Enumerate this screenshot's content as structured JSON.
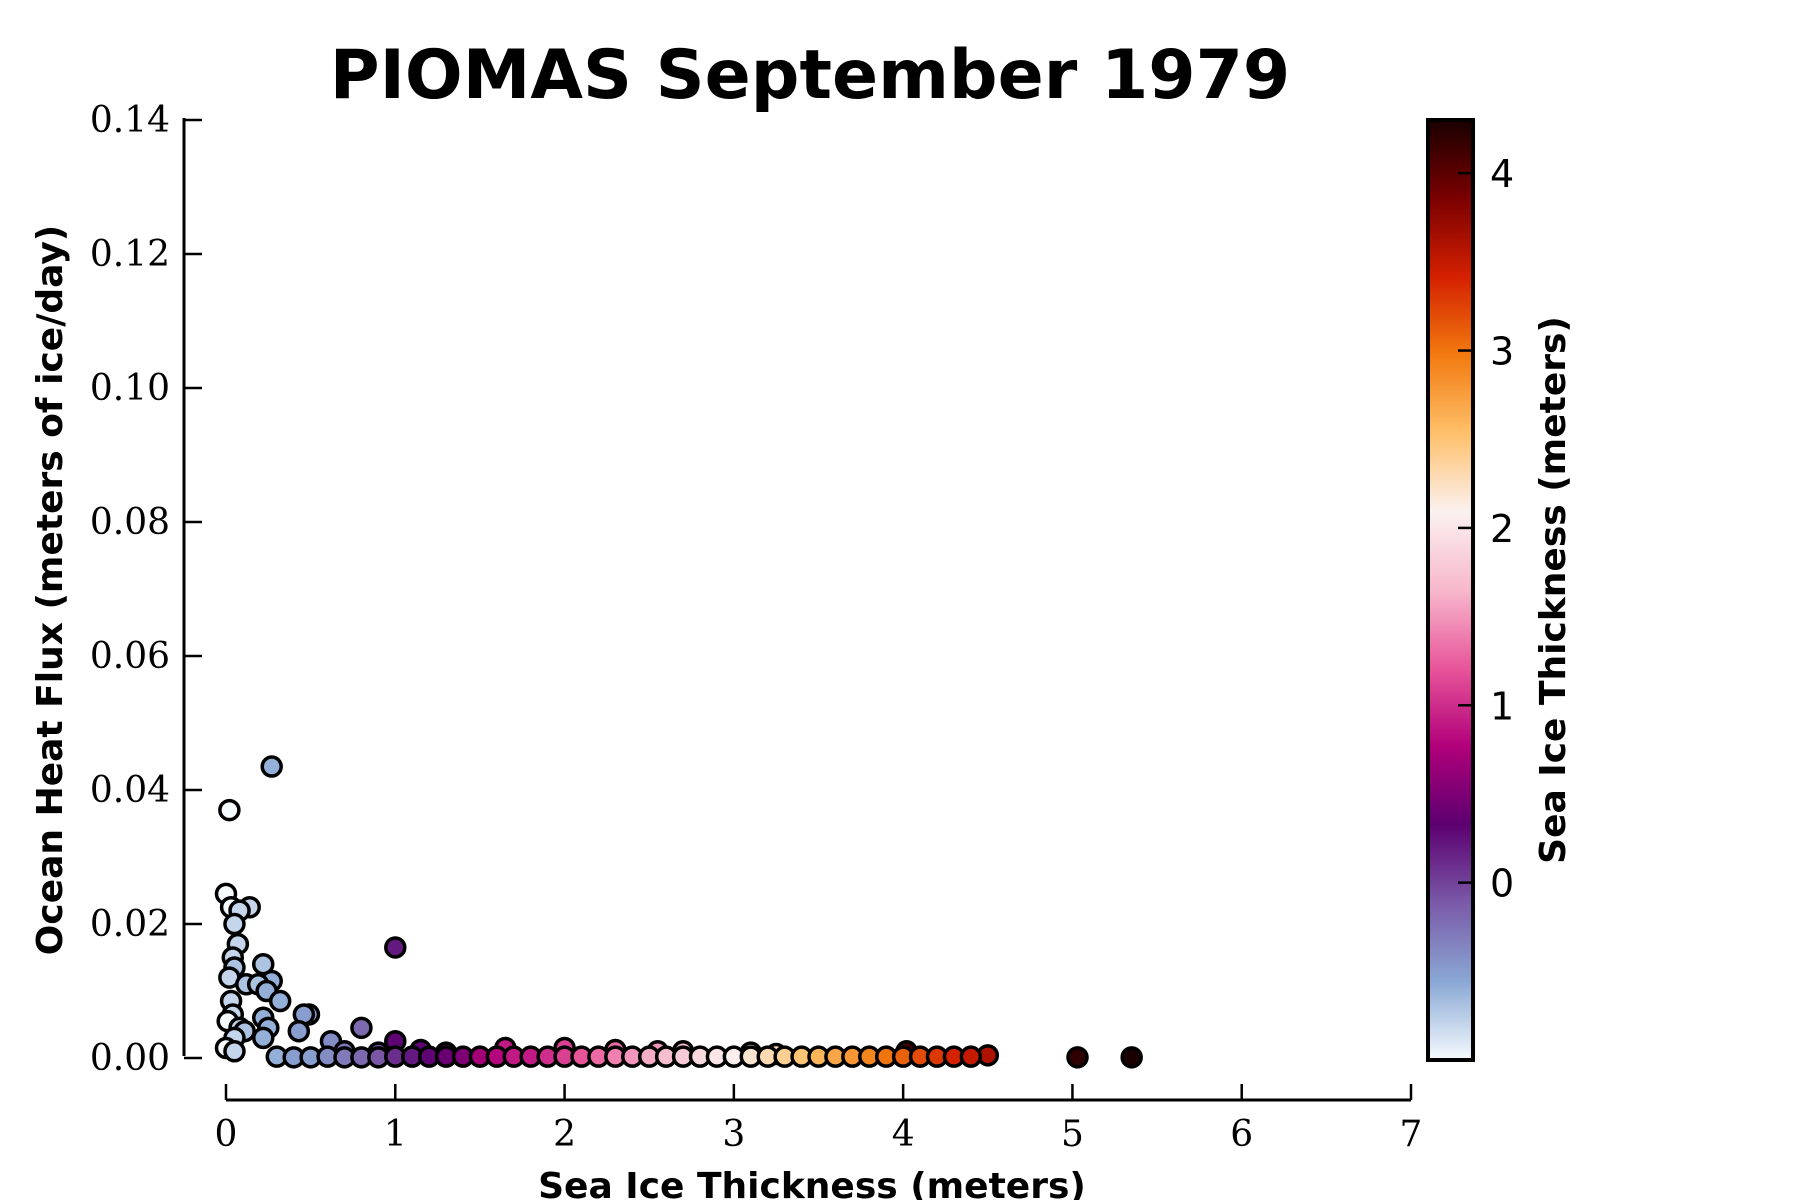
{
  "chart_data": {
    "type": "scatter",
    "title": "PIOMAS September 1979",
    "xlabel": "Sea Ice Thickness (meters)",
    "ylabel": "Ocean Heat Flux (meters of ice/day)",
    "xlim": [
      0,
      7
    ],
    "ylim": [
      0.0,
      0.14
    ],
    "x_ticks": [
      "0",
      "1",
      "2",
      "3",
      "4",
      "5",
      "6",
      "7"
    ],
    "y_ticks": [
      "0.00",
      "0.02",
      "0.04",
      "0.06",
      "0.08",
      "0.10",
      "0.12",
      "0.14"
    ],
    "grid": false,
    "colorbar": {
      "label": "Sea Ice Thickness (meters)",
      "range": [
        -1.0,
        4.3
      ],
      "ticks": [
        "0",
        "1",
        "2",
        "3",
        "4"
      ],
      "colormap_stops": [
        "#f5fbff",
        "#8aa8d4",
        "#7a5aa8",
        "#5c0070",
        "#b0007a",
        "#e8559a",
        "#f7b8cc",
        "#fbf1f0",
        "#ffc06a",
        "#f27a10",
        "#d42000",
        "#7a0000",
        "#1a0000"
      ]
    },
    "points": [
      [
        0.02,
        0.037,
        -1.0
      ],
      [
        0.27,
        0.0435,
        -0.6
      ],
      [
        0.0,
        0.0245,
        -1.0
      ],
      [
        0.03,
        0.0225,
        -1.0
      ],
      [
        0.14,
        0.0225,
        -0.8
      ],
      [
        0.08,
        0.022,
        -0.8
      ],
      [
        0.05,
        0.02,
        -0.8
      ],
      [
        0.07,
        0.017,
        -0.8
      ],
      [
        0.04,
        0.015,
        -0.8
      ],
      [
        0.22,
        0.014,
        -0.7
      ],
      [
        0.05,
        0.0135,
        -0.7
      ],
      [
        0.02,
        0.012,
        -0.8
      ],
      [
        0.27,
        0.0115,
        -0.6
      ],
      [
        0.12,
        0.011,
        -0.7
      ],
      [
        0.19,
        0.011,
        -0.7
      ],
      [
        0.24,
        0.01,
        -0.6
      ],
      [
        0.32,
        0.0085,
        -0.6
      ],
      [
        0.03,
        0.0085,
        -0.8
      ],
      [
        0.49,
        0.0065,
        -0.5
      ],
      [
        0.46,
        0.0065,
        -0.5
      ],
      [
        0.04,
        0.0065,
        -0.8
      ],
      [
        0.22,
        0.006,
        -0.6
      ],
      [
        0.01,
        0.0055,
        -1.0
      ],
      [
        0.08,
        0.0045,
        -0.8
      ],
      [
        0.25,
        0.0045,
        -0.6
      ],
      [
        0.11,
        0.004,
        -0.7
      ],
      [
        0.43,
        0.004,
        -0.5
      ],
      [
        0.05,
        0.003,
        -0.8
      ],
      [
        0.22,
        0.003,
        -0.6
      ],
      [
        0.62,
        0.0025,
        -0.4
      ],
      [
        0.8,
        0.0045,
        -0.2
      ],
      [
        1.0,
        0.0165,
        0.2
      ],
      [
        1.0,
        0.0025,
        0.3
      ],
      [
        0.0,
        0.0015,
        -1.0
      ],
      [
        0.05,
        0.001,
        -0.8
      ],
      [
        0.7,
        0.001,
        -0.3
      ],
      [
        0.9,
        0.0008,
        -0.1
      ],
      [
        1.15,
        0.0012,
        0.3
      ],
      [
        1.3,
        0.0008,
        0.4
      ],
      [
        1.65,
        0.0015,
        0.9
      ],
      [
        2.0,
        0.0015,
        1.1
      ],
      [
        2.3,
        0.0012,
        1.3
      ],
      [
        2.55,
        0.001,
        1.5
      ],
      [
        2.7,
        0.001,
        1.7
      ],
      [
        3.1,
        0.0008,
        2.0
      ],
      [
        3.25,
        0.0006,
        2.3
      ],
      [
        4.02,
        0.001,
        4.1
      ],
      [
        4.5,
        0.0004,
        3.6
      ],
      [
        5.03,
        0.0001,
        4.2
      ],
      [
        5.35,
        0.0001,
        4.3
      ],
      [
        0.3,
        0.0002,
        -0.6
      ],
      [
        0.4,
        0.0001,
        -0.5
      ],
      [
        0.5,
        0.0001,
        -0.5
      ],
      [
        0.6,
        0.0002,
        -0.4
      ],
      [
        0.7,
        0.0001,
        -0.3
      ],
      [
        0.8,
        0.0001,
        -0.2
      ],
      [
        0.9,
        0.0001,
        -0.1
      ],
      [
        1.0,
        0.0002,
        0.1
      ],
      [
        1.1,
        0.0002,
        0.2
      ],
      [
        1.2,
        0.0002,
        0.3
      ],
      [
        1.3,
        0.0002,
        0.4
      ],
      [
        1.4,
        0.0002,
        0.5
      ],
      [
        1.5,
        0.0002,
        0.7
      ],
      [
        1.6,
        0.0002,
        0.8
      ],
      [
        1.7,
        0.0002,
        0.9
      ],
      [
        1.8,
        0.0002,
        0.9
      ],
      [
        1.9,
        0.0002,
        1.0
      ],
      [
        2.0,
        0.0002,
        1.1
      ],
      [
        2.1,
        0.0002,
        1.2
      ],
      [
        2.2,
        0.0002,
        1.3
      ],
      [
        2.3,
        0.0002,
        1.4
      ],
      [
        2.4,
        0.0002,
        1.5
      ],
      [
        2.5,
        0.0002,
        1.6
      ],
      [
        2.6,
        0.0002,
        1.7
      ],
      [
        2.7,
        0.0002,
        1.8
      ],
      [
        2.8,
        0.0002,
        1.9
      ],
      [
        2.9,
        0.0002,
        2.0
      ],
      [
        3.0,
        0.0002,
        2.1
      ],
      [
        3.1,
        0.0002,
        2.2
      ],
      [
        3.2,
        0.0002,
        2.3
      ],
      [
        3.3,
        0.0002,
        2.4
      ],
      [
        3.4,
        0.0002,
        2.5
      ],
      [
        3.5,
        0.0002,
        2.6
      ],
      [
        3.6,
        0.0002,
        2.7
      ],
      [
        3.7,
        0.0002,
        2.8
      ],
      [
        3.8,
        0.0002,
        2.9
      ],
      [
        3.9,
        0.0002,
        3.0
      ],
      [
        4.0,
        0.0002,
        3.1
      ],
      [
        4.1,
        0.0002,
        3.2
      ],
      [
        4.2,
        0.0002,
        3.3
      ],
      [
        4.3,
        0.0002,
        3.4
      ],
      [
        4.4,
        0.0002,
        3.5
      ]
    ]
  }
}
